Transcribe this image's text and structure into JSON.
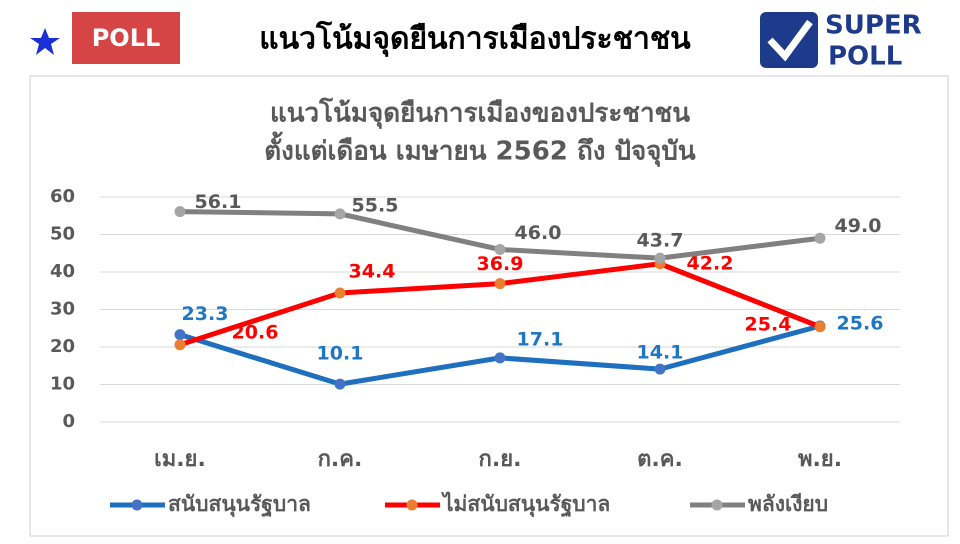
{
  "header": {
    "badge": "POLL",
    "title": "แนวโน้มจุดยืนการเมืองประชาชน",
    "logo": {
      "line1": "SUPER",
      "line2": "POLL"
    }
  },
  "chart_data": {
    "type": "line",
    "title": [
      "แนวโน้มจุดยืนการเมืองของประชาชน",
      "ตั้งแต่เดือน เมษายน  2562 ถึง ปัจจุบัน"
    ],
    "categories": [
      "เม.ย.",
      "ก.ค.",
      "ก.ย.",
      "ต.ค.",
      "พ.ย."
    ],
    "ylim": [
      0,
      60
    ],
    "yticks": [
      0,
      10,
      20,
      30,
      40,
      50,
      60
    ],
    "grid": true,
    "series": [
      {
        "name": "สนับสนุนรัฐบาล",
        "color": "#1f6fbf",
        "marker_color": "#4472c4",
        "label_color": "#1f77c4",
        "values": [
          23.3,
          10.1,
          17.1,
          14.1,
          25.6
        ],
        "value_labels": [
          "23.3",
          "10.1",
          "17.1",
          "14.1",
          "25.6"
        ]
      },
      {
        "name": "ไม่สนับสนุนรัฐบาล",
        "color": "#ff0000",
        "marker_color": "#ed7d31",
        "label_color": "#ff0000",
        "values": [
          20.6,
          34.4,
          36.9,
          42.2,
          25.4
        ],
        "value_labels": [
          "20.6",
          "34.4",
          "36.9",
          "42.2",
          "25.4"
        ]
      },
      {
        "name": "พลังเงียบ",
        "color": "#808080",
        "marker_color": "#a5a5a5",
        "label_color": "#595959",
        "values": [
          56.1,
          55.5,
          46.0,
          43.7,
          49.0
        ],
        "value_labels": [
          "56.1",
          "55.5",
          "46.0",
          "43.7",
          "49.0"
        ]
      }
    ]
  }
}
